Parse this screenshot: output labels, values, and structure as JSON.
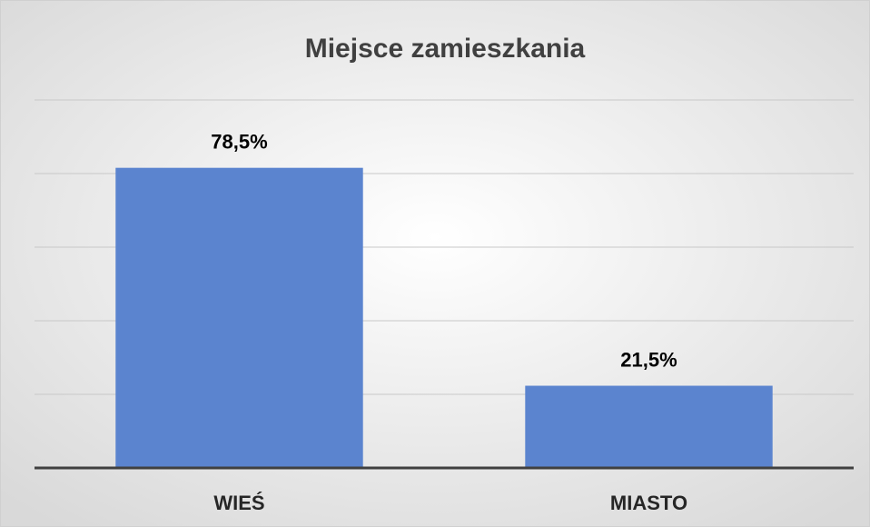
{
  "chart_data": {
    "type": "bar",
    "title": "Miejsce zamieszkania",
    "categories": [
      "WIEŚ",
      "MIASTO"
    ],
    "values": [
      78.5,
      21.5
    ],
    "value_labels": [
      "78,5%",
      "21,5%"
    ],
    "color": "#5b84cf",
    "ylim": [
      0,
      96.25
    ],
    "yticks": [
      0,
      19.25,
      38.5,
      57.75,
      77,
      96.25
    ],
    "grid": true
  }
}
